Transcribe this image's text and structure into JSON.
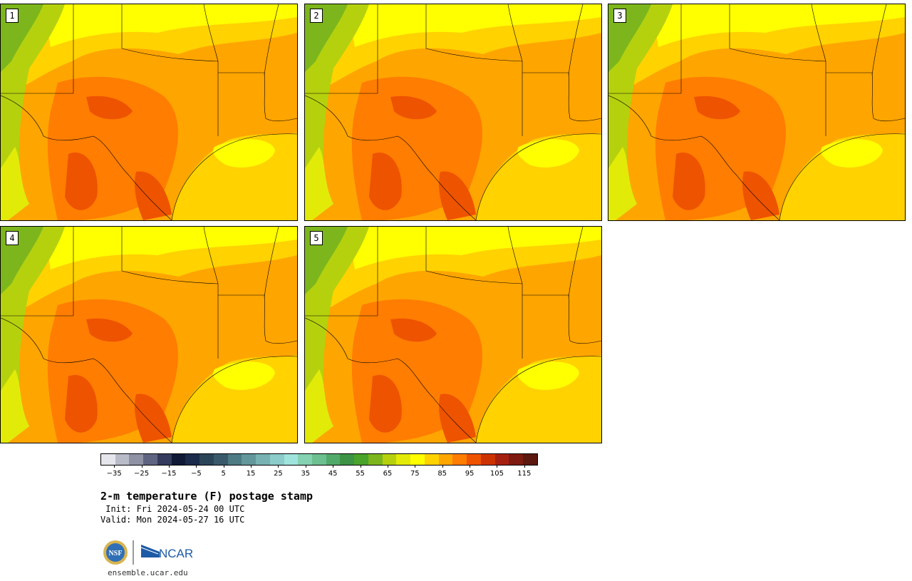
{
  "title": "2-m temperature (F) postage stamp",
  "init_text": " Init: Fri 2024-05-24 00 UTC",
  "valid_text": "Valid: Mon 2024-05-27 16 UTC",
  "footer_url": "ensemble.ucar.edu",
  "logos": {
    "nsf_text": "NSF",
    "ncar_text": "NCAR"
  },
  "panels": [
    {
      "label": "1"
    },
    {
      "label": "2"
    },
    {
      "label": "3"
    },
    {
      "label": "4"
    },
    {
      "label": "5"
    }
  ],
  "colorbar": {
    "colors": [
      "#e4e6ec",
      "#b9bcc8",
      "#8e92a4",
      "#5f6480",
      "#343b5c",
      "#101a36",
      "#1b2b4a",
      "#2b4458",
      "#3a5a6b",
      "#4e7a84",
      "#62979c",
      "#78b2b2",
      "#8ccccb",
      "#9fe4dc",
      "#84d2b1",
      "#6cbf8f",
      "#52aa6a",
      "#3c9346",
      "#4aa32b",
      "#7cb61c",
      "#b5d10e",
      "#e2eb08",
      "#ffff00",
      "#ffd200",
      "#ffa500",
      "#ff7d00",
      "#ee5300",
      "#cc3300",
      "#a62010",
      "#7e1a10",
      "#5a180e"
    ],
    "tick_labels": [
      "−35",
      "−25",
      "−15",
      "−5",
      "5",
      "15",
      "25",
      "35",
      "45",
      "55",
      "65",
      "75",
      "85",
      "95",
      "105",
      "115"
    ],
    "range": [
      -40,
      120
    ],
    "tick_values": [
      -35,
      -25,
      -15,
      -5,
      5,
      15,
      25,
      35,
      45,
      55,
      65,
      75,
      85,
      95,
      105,
      115
    ]
  }
}
